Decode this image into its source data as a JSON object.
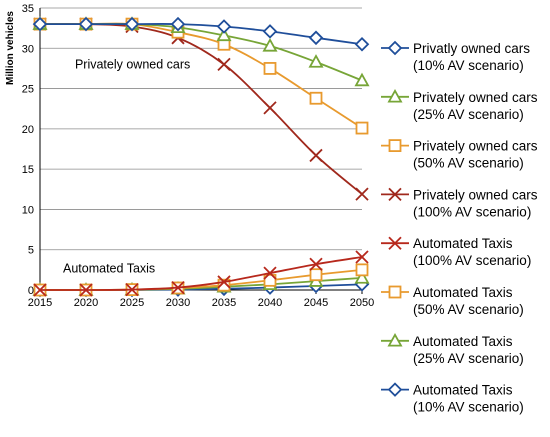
{
  "chart_data": {
    "type": "line",
    "ylabel": "Million vehicles",
    "xlabel": "",
    "x": [
      2015,
      2020,
      2025,
      2030,
      2035,
      2040,
      2045,
      2050
    ],
    "xlim": [
      2015,
      2050
    ],
    "ylim": [
      0,
      35
    ],
    "y_ticks": [
      0,
      5,
      10,
      15,
      20,
      25,
      30,
      35
    ],
    "grid": "horizontal",
    "legend_position": "right",
    "annotations": [
      {
        "text": "Privately owned cars",
        "x": 2018.8,
        "y": 27.5
      },
      {
        "text": "Automated Taxis",
        "x": 2017.5,
        "y": 2.2
      }
    ],
    "series": [
      {
        "name_line1": "Privatly owned cars",
        "name_line2": "(10% AV scenario)",
        "marker": "diamond",
        "color": "#1F4E9A",
        "values": [
          33.0,
          33.0,
          33.0,
          33.0,
          32.7,
          32.1,
          31.3,
          30.5
        ]
      },
      {
        "name_line1": "Privately owned cars",
        "name_line2": "(25% AV scenario)",
        "marker": "triangle",
        "color": "#77A537",
        "values": [
          33.0,
          33.0,
          33.0,
          32.6,
          31.6,
          30.3,
          28.3,
          26.0
        ]
      },
      {
        "name_line1": "Privately owned cars",
        "name_line2": "(50% AV scenario)",
        "marker": "square",
        "color": "#E89A2E",
        "values": [
          33.0,
          33.0,
          33.0,
          32.0,
          30.5,
          27.5,
          23.8,
          20.1
        ]
      },
      {
        "name_line1": "Privately owned cars",
        "name_line2": "(100% AV scenario)",
        "marker": "x",
        "color": "#A0281C",
        "values": [
          33.0,
          33.0,
          32.7,
          31.3,
          28.0,
          22.6,
          16.7,
          11.9
        ]
      },
      {
        "name_line1": "Automated Taxis",
        "name_line2": "(100% AV scenario)",
        "marker": "x",
        "color": "#B7281C",
        "values": [
          0,
          0,
          0.05,
          0.3,
          1.0,
          2.1,
          3.2,
          4.1
        ]
      },
      {
        "name_line1": "Automated Taxis",
        "name_line2": "(50% AV scenario)",
        "marker": "square",
        "color": "#E89A2E",
        "values": [
          0,
          0,
          0.05,
          0.25,
          0.6,
          1.2,
          1.9,
          2.5
        ]
      },
      {
        "name_line1": "Automated Taxis",
        "name_line2": "(25% AV scenario)",
        "marker": "triangle",
        "color": "#77A537",
        "values": [
          0,
          0,
          0.03,
          0.15,
          0.4,
          0.7,
          1.1,
          1.5
        ]
      },
      {
        "name_line1": "Automated Taxis",
        "name_line2": "(10% AV scenario)",
        "marker": "diamond",
        "color": "#1F4E9A",
        "values": [
          0,
          0,
          0,
          0.05,
          0.15,
          0.3,
          0.5,
          0.7
        ]
      }
    ]
  }
}
